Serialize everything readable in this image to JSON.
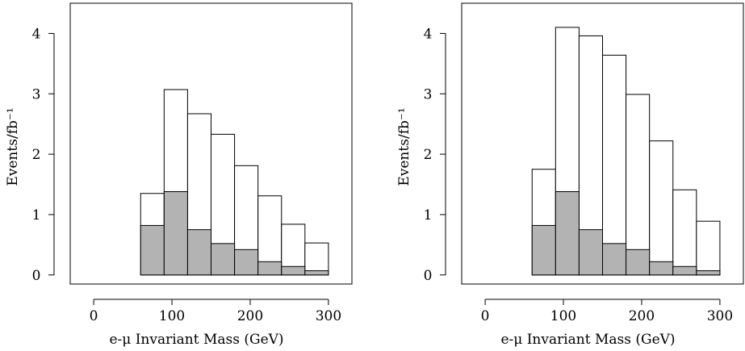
{
  "chart_data": [
    {
      "type": "bar",
      "title": "",
      "xlabel": "e-μ Invariant Mass (GeV)",
      "ylabel": "Events/fb⁻¹",
      "xlim": [
        -30,
        330
      ],
      "ylim": [
        -0.15,
        4.5
      ],
      "xticks": [
        0,
        100,
        200,
        300
      ],
      "yticks": [
        0,
        1,
        2,
        3,
        4
      ],
      "bin_edges": [
        0,
        30,
        60,
        90,
        120,
        150,
        180,
        210,
        240,
        270,
        300
      ],
      "series": [
        {
          "name": "",
          "values": [
            0,
            0,
            1.35,
            3.07,
            2.67,
            2.33,
            1.81,
            1.31,
            0.84,
            0.53
          ],
          "fill": "#ffffff"
        },
        {
          "name": "",
          "values": [
            0,
            0,
            0.82,
            1.38,
            0.75,
            0.52,
            0.42,
            0.22,
            0.14,
            0.07
          ],
          "fill": "#b3b3b3"
        }
      ]
    },
    {
      "type": "bar",
      "title": "",
      "xlabel": "e-μ Invariant Mass (GeV)",
      "ylabel": "Events/fb⁻¹",
      "xlim": [
        -30,
        330
      ],
      "ylim": [
        -0.15,
        4.5
      ],
      "xticks": [
        0,
        100,
        200,
        300
      ],
      "yticks": [
        0,
        1,
        2,
        3,
        4
      ],
      "bin_edges": [
        0,
        30,
        60,
        90,
        120,
        150,
        180,
        210,
        240,
        270,
        300
      ],
      "series": [
        {
          "name": "",
          "values": [
            0,
            0,
            1.75,
            4.1,
            3.96,
            3.64,
            2.99,
            2.22,
            1.41,
            0.89
          ],
          "fill": "#ffffff"
        },
        {
          "name": "",
          "values": [
            0,
            0,
            0.82,
            1.38,
            0.75,
            0.52,
            0.42,
            0.22,
            0.14,
            0.07
          ],
          "fill": "#b3b3b3"
        }
      ]
    }
  ]
}
